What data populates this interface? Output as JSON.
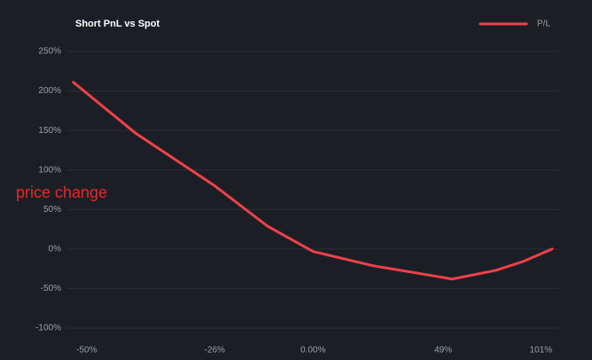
{
  "chart_data": {
    "type": "line",
    "title": "Short PnL vs Spot",
    "annotation": "price change",
    "xscale": "log",
    "x": [
      -52,
      -42,
      -26,
      -13,
      0,
      20,
      49,
      53,
      75,
      90,
      108
    ],
    "series": [
      {
        "name": "P/L",
        "color": "#f0404a",
        "values": [
          211,
          147,
          80,
          29,
          -3,
          -21,
          -36,
          -38,
          -27,
          -16,
          0
        ]
      }
    ],
    "xlim": [
      -53,
      112
    ],
    "xticks": [
      {
        "value": -50,
        "label": "-50%"
      },
      {
        "value": -26,
        "label": "-26%"
      },
      {
        "value": 0,
        "label": "0.00%"
      },
      {
        "value": 49,
        "label": "49%"
      },
      {
        "value": 101,
        "label": "101%"
      }
    ],
    "ylim": [
      -100,
      250
    ],
    "yticks": [
      {
        "value": -100,
        "label": "-100%"
      },
      {
        "value": -50,
        "label": "-50%"
      },
      {
        "value": 0,
        "label": "0%"
      },
      {
        "value": 50,
        "label": "50%"
      },
      {
        "value": 100,
        "label": "100%"
      },
      {
        "value": 150,
        "label": "150%"
      },
      {
        "value": 200,
        "label": "200%"
      },
      {
        "value": 250,
        "label": "250%"
      }
    ],
    "grid": true,
    "legend": "top-right"
  }
}
